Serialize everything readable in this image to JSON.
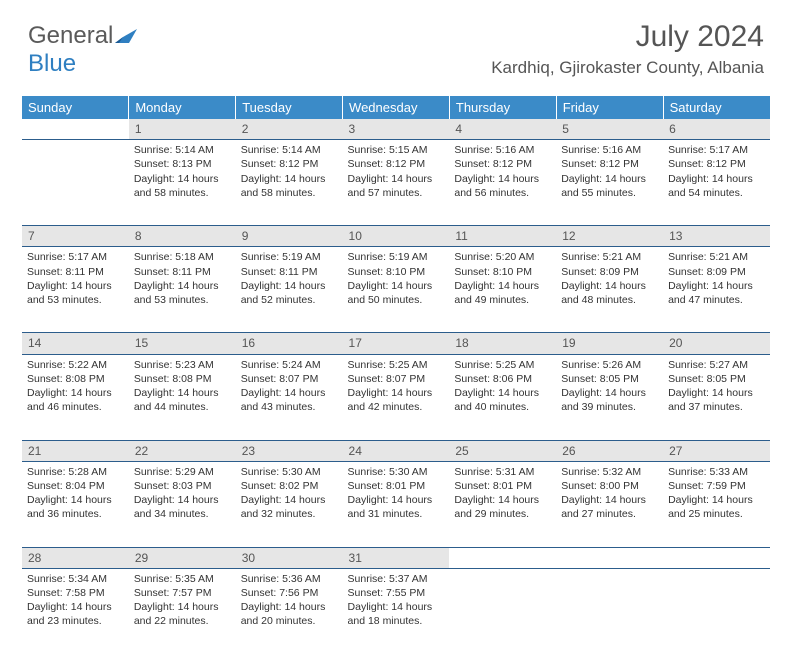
{
  "logo": {
    "word1": "General",
    "word2": "Blue"
  },
  "header": {
    "month_title": "July 2024",
    "location": "Kardhiq, Gjirokaster County, Albania"
  },
  "colors": {
    "header_bg": "#3b8bc8",
    "header_text": "#ffffff",
    "daynum_bg": "#e6e6e6",
    "border": "#2c5d8c",
    "text": "#333333",
    "logo_gray": "#5a5a5a",
    "logo_blue": "#2f7fc1"
  },
  "days_of_week": [
    "Sunday",
    "Monday",
    "Tuesday",
    "Wednesday",
    "Thursday",
    "Friday",
    "Saturday"
  ],
  "weeks": [
    [
      null,
      {
        "n": "1",
        "sr": "5:14 AM",
        "ss": "8:13 PM",
        "dl": "14 hours and 58 minutes."
      },
      {
        "n": "2",
        "sr": "5:14 AM",
        "ss": "8:12 PM",
        "dl": "14 hours and 58 minutes."
      },
      {
        "n": "3",
        "sr": "5:15 AM",
        "ss": "8:12 PM",
        "dl": "14 hours and 57 minutes."
      },
      {
        "n": "4",
        "sr": "5:16 AM",
        "ss": "8:12 PM",
        "dl": "14 hours and 56 minutes."
      },
      {
        "n": "5",
        "sr": "5:16 AM",
        "ss": "8:12 PM",
        "dl": "14 hours and 55 minutes."
      },
      {
        "n": "6",
        "sr": "5:17 AM",
        "ss": "8:12 PM",
        "dl": "14 hours and 54 minutes."
      }
    ],
    [
      {
        "n": "7",
        "sr": "5:17 AM",
        "ss": "8:11 PM",
        "dl": "14 hours and 53 minutes."
      },
      {
        "n": "8",
        "sr": "5:18 AM",
        "ss": "8:11 PM",
        "dl": "14 hours and 53 minutes."
      },
      {
        "n": "9",
        "sr": "5:19 AM",
        "ss": "8:11 PM",
        "dl": "14 hours and 52 minutes."
      },
      {
        "n": "10",
        "sr": "5:19 AM",
        "ss": "8:10 PM",
        "dl": "14 hours and 50 minutes."
      },
      {
        "n": "11",
        "sr": "5:20 AM",
        "ss": "8:10 PM",
        "dl": "14 hours and 49 minutes."
      },
      {
        "n": "12",
        "sr": "5:21 AM",
        "ss": "8:09 PM",
        "dl": "14 hours and 48 minutes."
      },
      {
        "n": "13",
        "sr": "5:21 AM",
        "ss": "8:09 PM",
        "dl": "14 hours and 47 minutes."
      }
    ],
    [
      {
        "n": "14",
        "sr": "5:22 AM",
        "ss": "8:08 PM",
        "dl": "14 hours and 46 minutes."
      },
      {
        "n": "15",
        "sr": "5:23 AM",
        "ss": "8:08 PM",
        "dl": "14 hours and 44 minutes."
      },
      {
        "n": "16",
        "sr": "5:24 AM",
        "ss": "8:07 PM",
        "dl": "14 hours and 43 minutes."
      },
      {
        "n": "17",
        "sr": "5:25 AM",
        "ss": "8:07 PM",
        "dl": "14 hours and 42 minutes."
      },
      {
        "n": "18",
        "sr": "5:25 AM",
        "ss": "8:06 PM",
        "dl": "14 hours and 40 minutes."
      },
      {
        "n": "19",
        "sr": "5:26 AM",
        "ss": "8:05 PM",
        "dl": "14 hours and 39 minutes."
      },
      {
        "n": "20",
        "sr": "5:27 AM",
        "ss": "8:05 PM",
        "dl": "14 hours and 37 minutes."
      }
    ],
    [
      {
        "n": "21",
        "sr": "5:28 AM",
        "ss": "8:04 PM",
        "dl": "14 hours and 36 minutes."
      },
      {
        "n": "22",
        "sr": "5:29 AM",
        "ss": "8:03 PM",
        "dl": "14 hours and 34 minutes."
      },
      {
        "n": "23",
        "sr": "5:30 AM",
        "ss": "8:02 PM",
        "dl": "14 hours and 32 minutes."
      },
      {
        "n": "24",
        "sr": "5:30 AM",
        "ss": "8:01 PM",
        "dl": "14 hours and 31 minutes."
      },
      {
        "n": "25",
        "sr": "5:31 AM",
        "ss": "8:01 PM",
        "dl": "14 hours and 29 minutes."
      },
      {
        "n": "26",
        "sr": "5:32 AM",
        "ss": "8:00 PM",
        "dl": "14 hours and 27 minutes."
      },
      {
        "n": "27",
        "sr": "5:33 AM",
        "ss": "7:59 PM",
        "dl": "14 hours and 25 minutes."
      }
    ],
    [
      {
        "n": "28",
        "sr": "5:34 AM",
        "ss": "7:58 PM",
        "dl": "14 hours and 23 minutes."
      },
      {
        "n": "29",
        "sr": "5:35 AM",
        "ss": "7:57 PM",
        "dl": "14 hours and 22 minutes."
      },
      {
        "n": "30",
        "sr": "5:36 AM",
        "ss": "7:56 PM",
        "dl": "14 hours and 20 minutes."
      },
      {
        "n": "31",
        "sr": "5:37 AM",
        "ss": "7:55 PM",
        "dl": "14 hours and 18 minutes."
      },
      null,
      null,
      null
    ]
  ],
  "labels": {
    "sunrise": "Sunrise:",
    "sunset": "Sunset:",
    "daylight": "Daylight:"
  }
}
